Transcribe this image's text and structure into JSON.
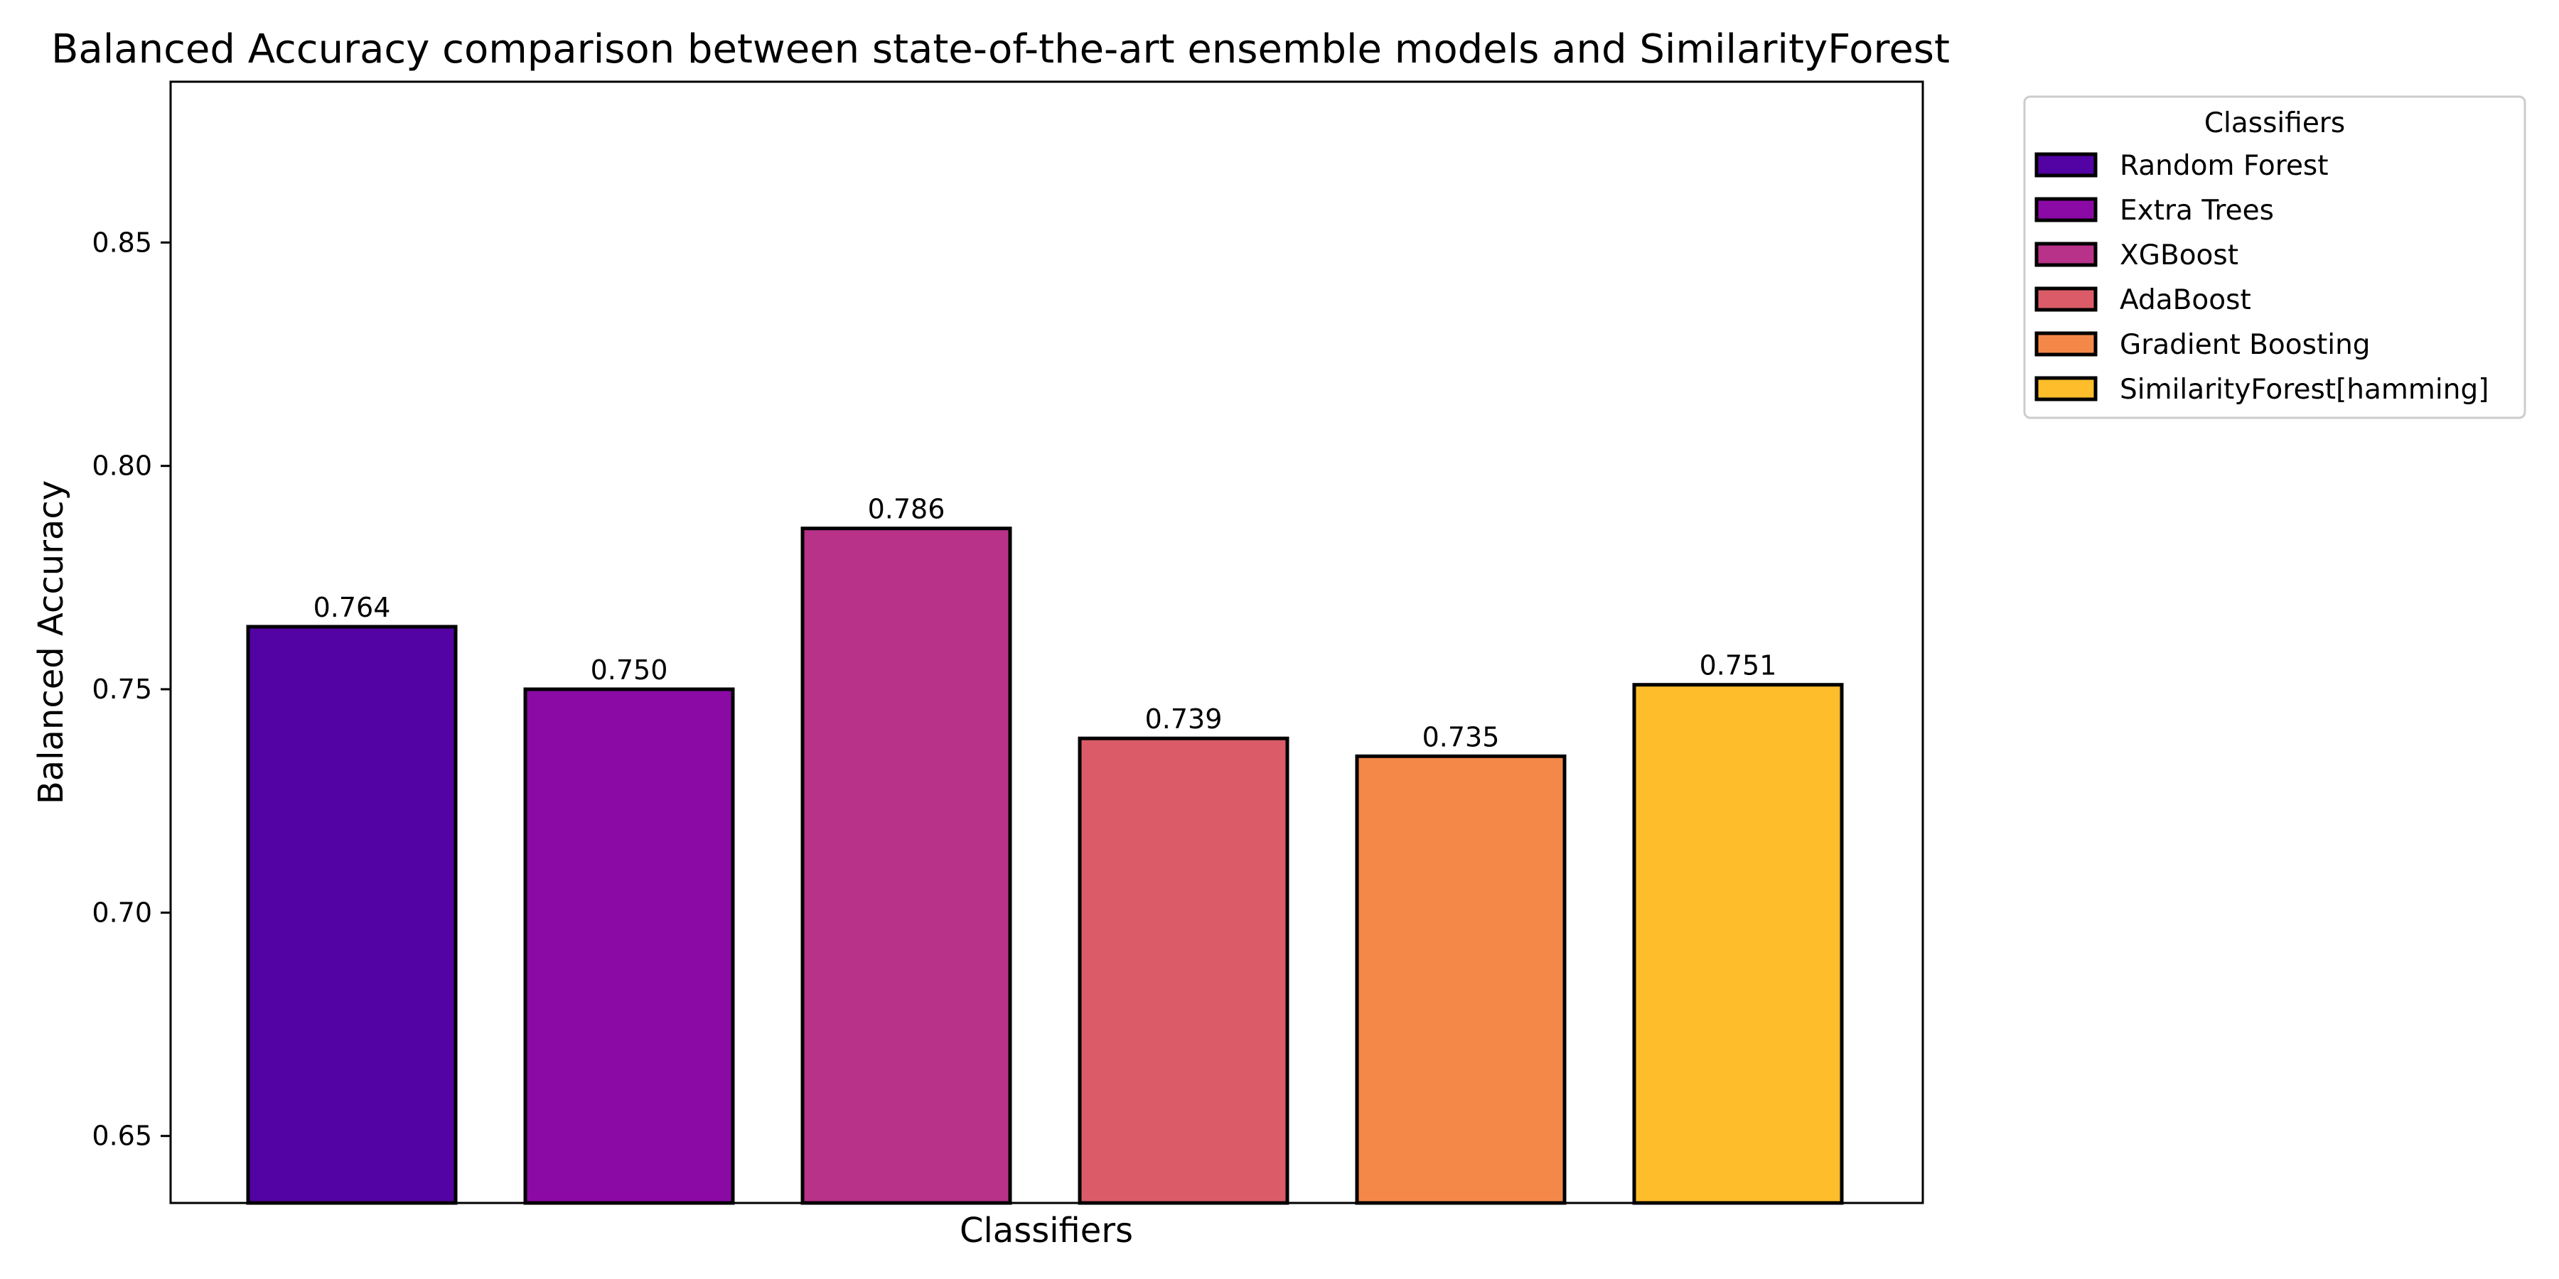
{
  "chart_data": {
    "type": "bar",
    "title": "Balanced Accuracy comparison between state-of-the-art ensemble models and SimilarityForest",
    "xlabel": "Classifiers",
    "ylabel": "Balanced Accuracy",
    "ylim": [
      0.635,
      0.886
    ],
    "yticks": [
      0.65,
      0.7,
      0.75,
      0.8,
      0.85
    ],
    "ytick_labels": [
      "0.65",
      "0.70",
      "0.75",
      "0.80",
      "0.85"
    ],
    "grid": false,
    "legend_position": "outside top-right",
    "legend_title": "Classifiers",
    "categories": [
      "Random Forest",
      "Extra Trees",
      "XGBoost",
      "AdaBoost",
      "Gradient Boosting",
      "SimilarityForest[hamming]"
    ],
    "values": [
      0.764,
      0.75,
      0.786,
      0.739,
      0.735,
      0.751
    ],
    "value_labels": [
      "0.764",
      "0.750",
      "0.786",
      "0.739",
      "0.735",
      "0.751"
    ],
    "colors": [
      "#5302a3",
      "#8b0aa5",
      "#b83289",
      "#db5c68",
      "#f48849",
      "#febd2a"
    ],
    "edge_color": "#000000"
  }
}
